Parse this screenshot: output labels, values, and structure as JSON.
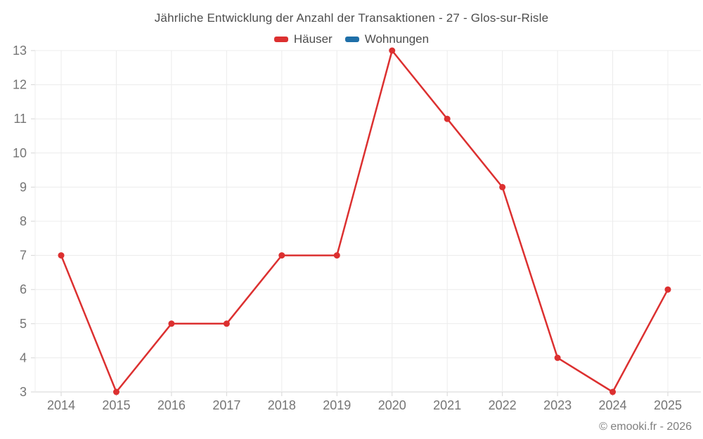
{
  "header": {
    "title": "Jährliche Entwicklung der Anzahl der Transaktionen - 27 - Glos-sur-Risle"
  },
  "legend": {
    "items": [
      {
        "label": "Häuser",
        "color": "#dc3030"
      },
      {
        "label": "Wohnungen",
        "color": "#1f6fa8"
      }
    ]
  },
  "footer": {
    "credit": "© emooki.fr - 2026"
  },
  "colors": {
    "series_hauser": "#dc3030",
    "series_wohnungen": "#1f6fa8",
    "grid_line": "#ececec",
    "axis_line": "#d6d6d6",
    "axis_label": "#757575",
    "title_text": "#4d4d4d",
    "footer_text": "#7f7f7f",
    "background": "#ffffff"
  },
  "chart_data": {
    "type": "line",
    "title": "Jährliche Entwicklung der Anzahl der Transaktionen - 27 - Glos-sur-Risle",
    "categories": [
      "2014",
      "2015",
      "2016",
      "2017",
      "2018",
      "2019",
      "2020",
      "2021",
      "2022",
      "2023",
      "2024",
      "2025"
    ],
    "series": [
      {
        "name": "Häuser",
        "color": "#dc3030",
        "values": [
          7,
          3,
          5,
          5,
          7,
          7,
          13,
          11,
          9,
          4,
          3,
          6
        ]
      },
      {
        "name": "Wohnungen",
        "color": "#1f6fa8",
        "values": []
      }
    ],
    "xlabel": "",
    "ylabel": "",
    "ylim": [
      3,
      13
    ],
    "y_ticks": [
      3,
      4,
      5,
      6,
      7,
      8,
      9,
      10,
      11,
      12,
      13
    ],
    "grid": true,
    "legend_position": "top",
    "marker": "circle"
  }
}
